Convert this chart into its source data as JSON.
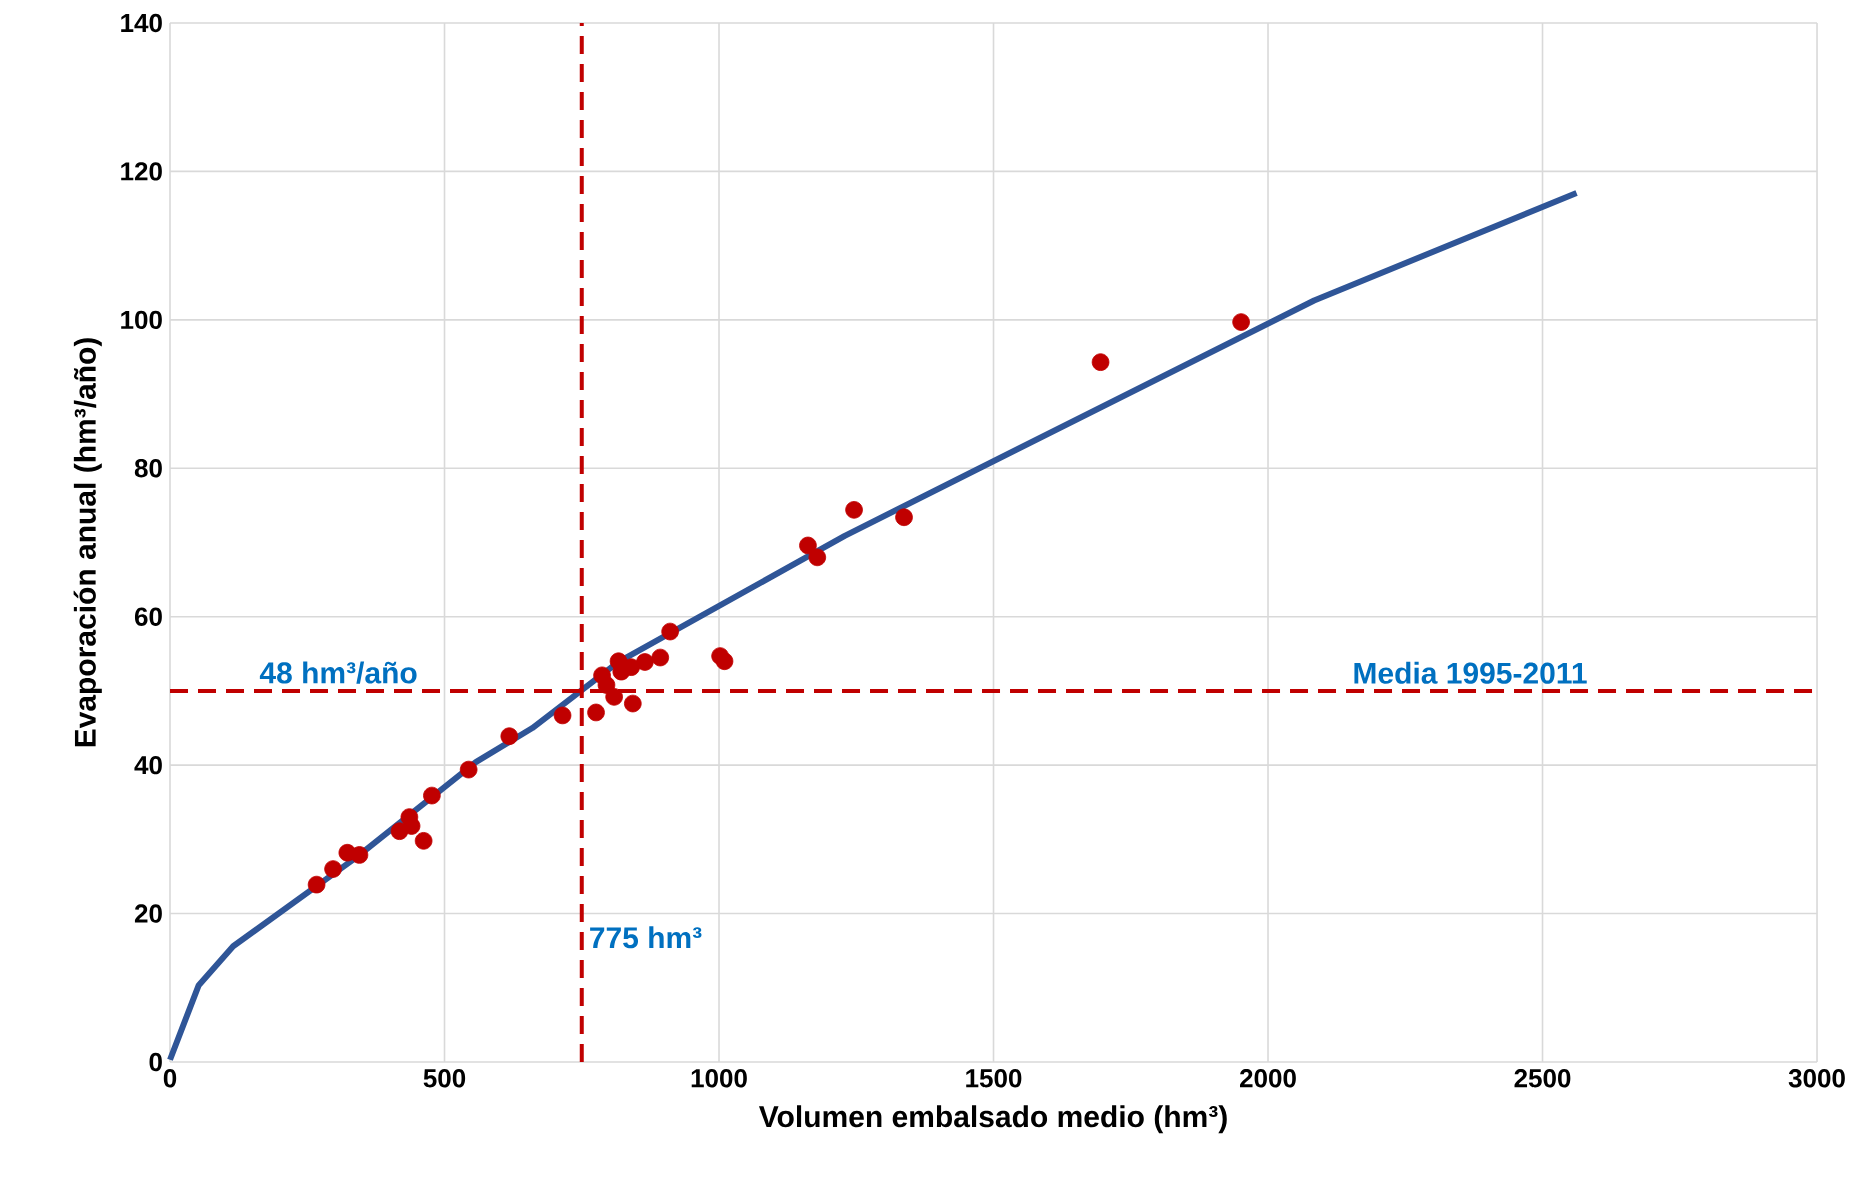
{
  "chart_data": {
    "type": "scatter",
    "xlabel": "Volumen embalsado medio  (hm³)",
    "ylabel": "Evaporación anual (hm³/año)",
    "xlim": [
      0,
      3000
    ],
    "xticks": [
      0,
      500,
      1000,
      1500,
      2000,
      2500,
      3000
    ],
    "ylim": [
      0,
      140
    ],
    "yticks": [
      0,
      20,
      40,
      60,
      80,
      100,
      120,
      140
    ],
    "grid": true,
    "series": [
      {
        "marker": "circle",
        "color": "#c00000",
        "x": [
          267,
          297,
          323,
          345,
          418,
          436,
          440,
          462,
          477,
          544,
          618,
          715,
          776,
          787,
          795,
          809,
          817,
          822,
          840,
          843,
          865,
          893,
          911,
          1002,
          1010,
          1162,
          1179,
          1246,
          1337,
          1695,
          1951
        ],
        "values": [
          23.9,
          26.0,
          28.2,
          27.9,
          31.1,
          33.0,
          31.8,
          29.8,
          35.9,
          39.4,
          43.9,
          46.7,
          47.1,
          52.1,
          50.8,
          49.2,
          54.0,
          52.6,
          53.2,
          48.3,
          53.9,
          54.5,
          58.0,
          54.7,
          54.0,
          69.6,
          68.0,
          74.4,
          73.4,
          94.3,
          99.7
        ]
      },
      {
        "type": "line",
        "color": "#2f5597",
        "x": [
          0,
          52,
          115,
          340,
          557,
          660,
          817,
          1229,
          2084,
          2562
        ],
        "values": [
          0.3,
          10.3,
          15.6,
          27.6,
          40.4,
          45.0,
          53.9,
          70.9,
          102.6,
          117.1
        ]
      }
    ],
    "ref_lines": [
      {
        "axis": "y",
        "value": 50,
        "label": "Media 1995-2011",
        "color": "#c00000",
        "line_style": "dashed"
      },
      {
        "axis": "x",
        "value": 750,
        "label": "775 hm³",
        "color": "#c00000",
        "line_style": "dashed"
      }
    ],
    "annotations": [
      {
        "text": "48 hm³/año",
        "x": 150,
        "y": 50
      }
    ]
  }
}
